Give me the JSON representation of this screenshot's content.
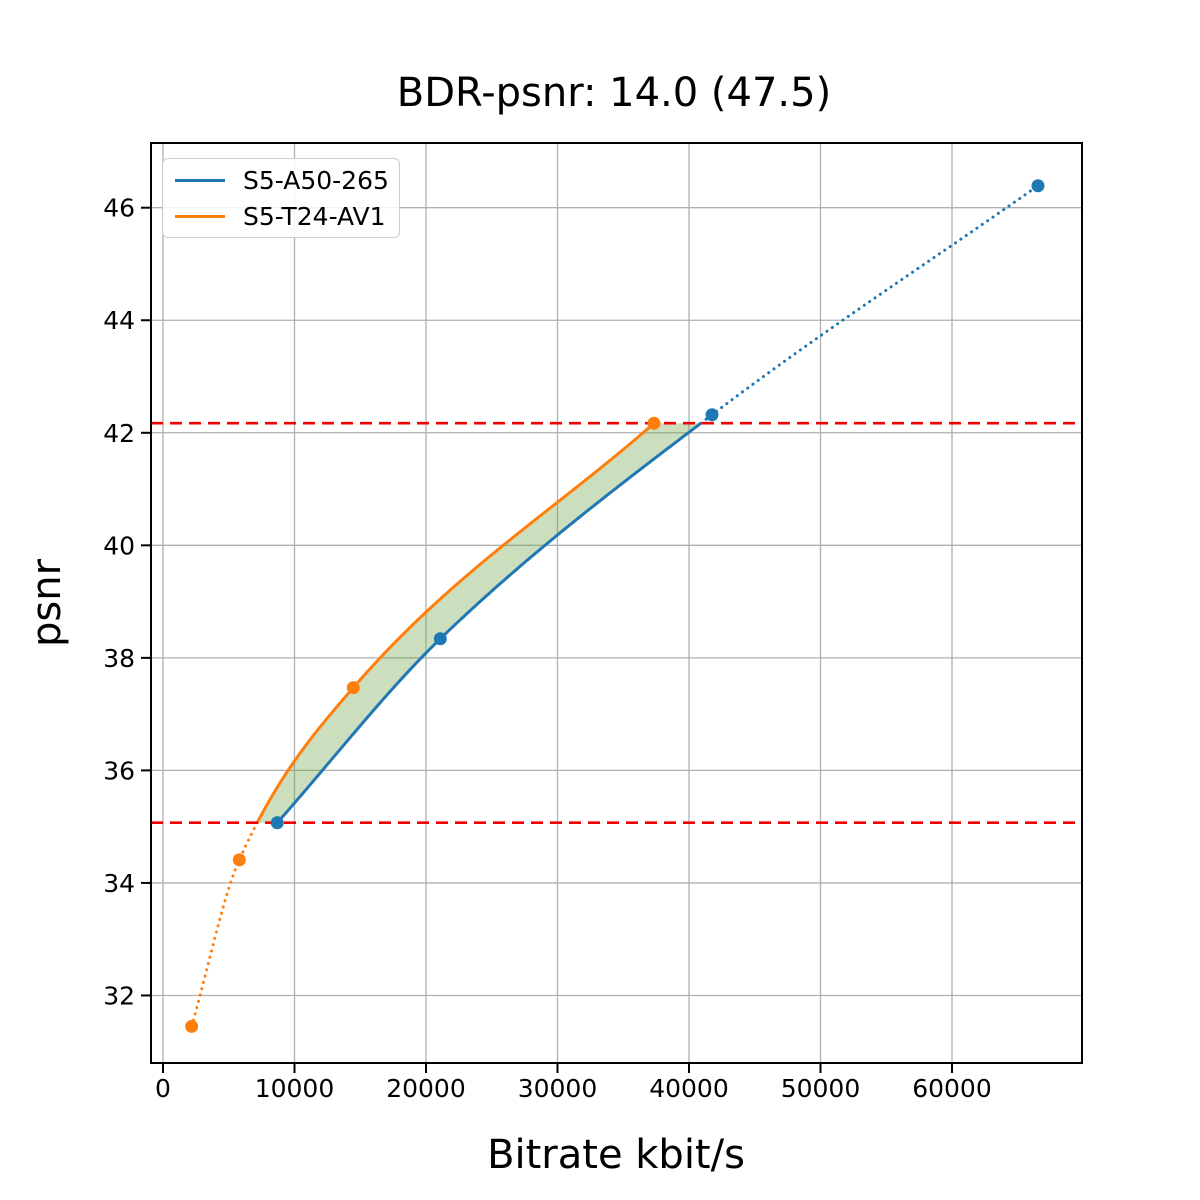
{
  "chart_data": {
    "type": "line",
    "title": "BDR-psnr: 14.0 (47.5)",
    "xlabel": "Bitrate kbit/s",
    "ylabel": "psnr",
    "xlim": [
      -912,
      69886
    ],
    "ylim": [
      30.8,
      47.15
    ],
    "x_ticks": [
      0,
      10000,
      20000,
      30000,
      40000,
      50000,
      60000
    ],
    "x_tick_labels": [
      "0",
      "10000",
      "20000",
      "30000",
      "40000",
      "50000",
      "60000"
    ],
    "y_ticks": [
      32,
      34,
      36,
      38,
      40,
      42,
      44,
      46
    ],
    "y_tick_labels": [
      "32",
      "34",
      "36",
      "38",
      "40",
      "42",
      "44",
      "46"
    ],
    "grid": true,
    "grid_color": "#b0b0b0",
    "legend_position": "upper left",
    "series": [
      {
        "name": "S5-A50-265",
        "color": "#1f77b4",
        "x": [
          8690,
          21090,
          41750,
          66540
        ],
        "y": [
          35.07,
          38.34,
          42.32,
          46.39
        ],
        "marker": "circle",
        "interpolation": "pchip"
      },
      {
        "name": "S5-T24-AV1",
        "color": "#ff7f0e",
        "x": [
          2180,
          5800,
          14470,
          37340
        ],
        "y": [
          31.45,
          34.41,
          37.47,
          42.17
        ],
        "marker": "circle",
        "interpolation": "pchip"
      }
    ],
    "overlap_lines": {
      "color": "#f40000",
      "style": "dashed",
      "lower_psnr": 35.07,
      "upper_psnr": 42.17
    },
    "fill_between": {
      "color": "#6aa447",
      "alpha": 0.35,
      "psnr_range": [
        35.07,
        42.17
      ]
    },
    "line_style_note": "solid inside overlap interval, dotted extrapolation outside"
  }
}
